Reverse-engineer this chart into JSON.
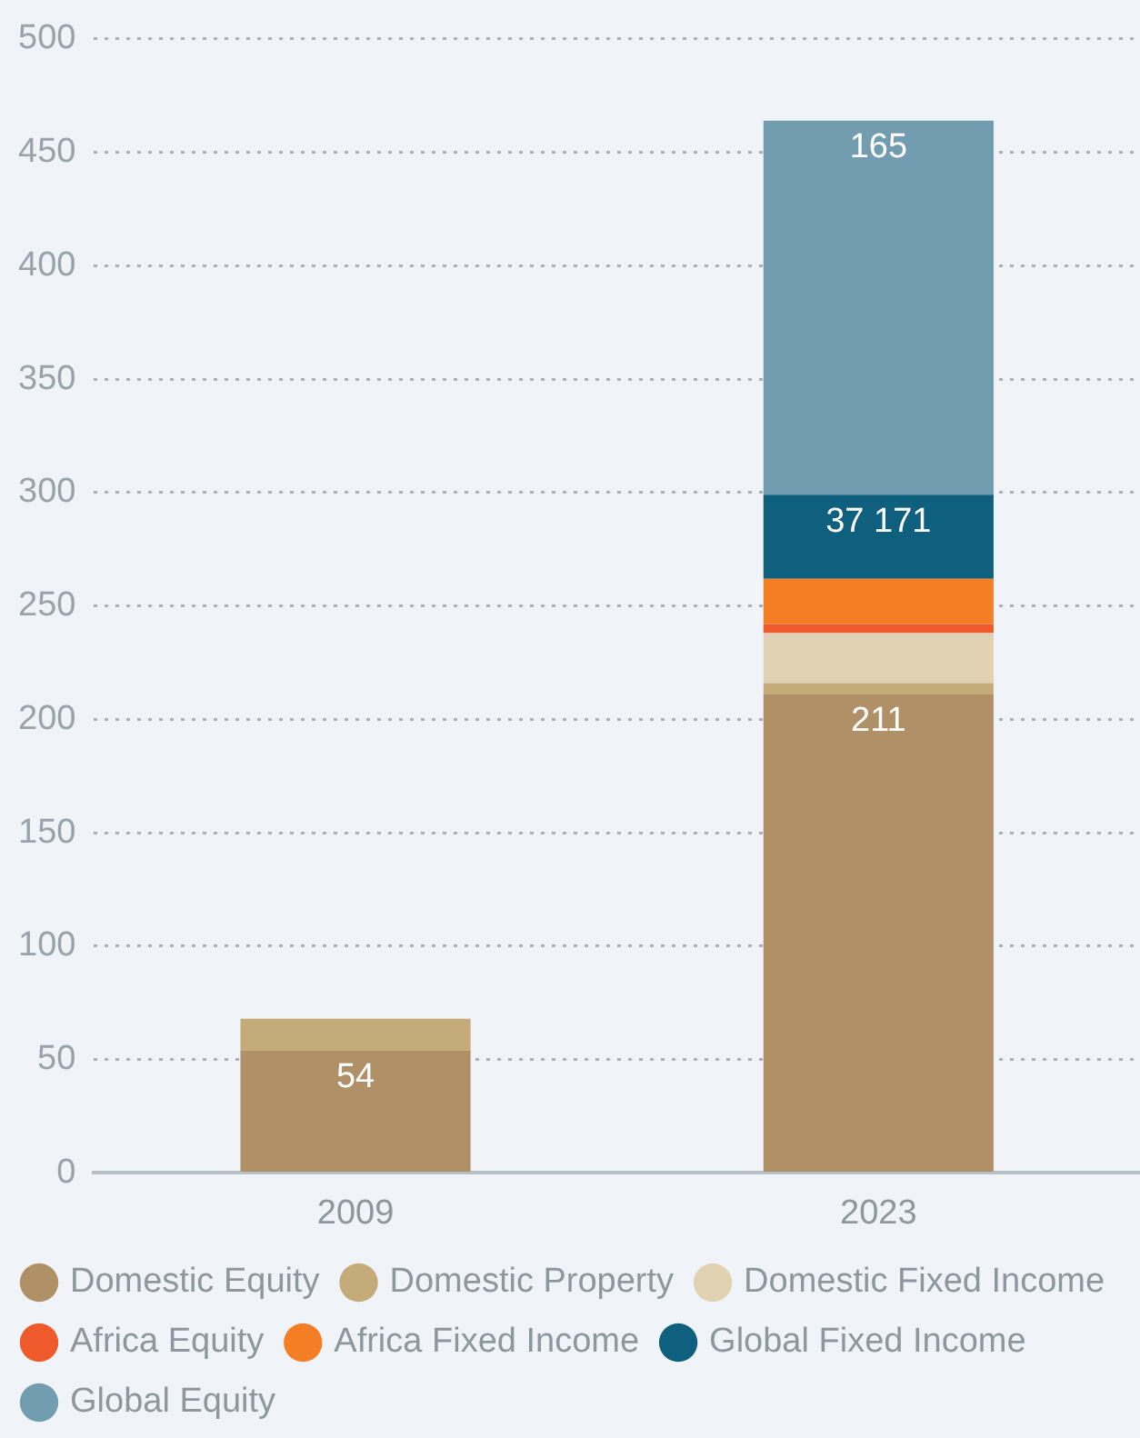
{
  "chart_data": {
    "type": "bar",
    "stacked": true,
    "categories": [
      "2009",
      "2023"
    ],
    "series": [
      {
        "name": "Domestic Equity",
        "color": "#b09066",
        "values": [
          54,
          211
        ],
        "value_labels": [
          "54",
          "211"
        ]
      },
      {
        "name": "Domestic Property",
        "color": "#c5ab7a",
        "values": [
          14,
          5
        ]
      },
      {
        "name": "Domestic Fixed Income",
        "color": "#e0d2b3",
        "values": [
          0,
          22
        ]
      },
      {
        "name": "Africa Equity",
        "color": "#ee5a2c",
        "values": [
          0,
          4
        ]
      },
      {
        "name": "Africa Fixed Income",
        "color": "#f47e24",
        "values": [
          0,
          20
        ]
      },
      {
        "name": "Global Fixed Income",
        "color": "#0f5f7f",
        "values": [
          0,
          37
        ]
      },
      {
        "name": "Global Equity",
        "color": "#729caf",
        "values": [
          0,
          165
        ],
        "value_labels": [
          null,
          "165"
        ]
      }
    ],
    "ylim": [
      0,
      500
    ],
    "yticks": [
      0,
      50,
      100,
      150,
      200,
      250,
      300,
      350,
      400,
      450,
      500
    ],
    "annotations": [
      {
        "text": "37 171",
        "x": "2023",
        "y": 299
      }
    ],
    "grid": "y",
    "legend": "bottom",
    "marker": "circle"
  }
}
